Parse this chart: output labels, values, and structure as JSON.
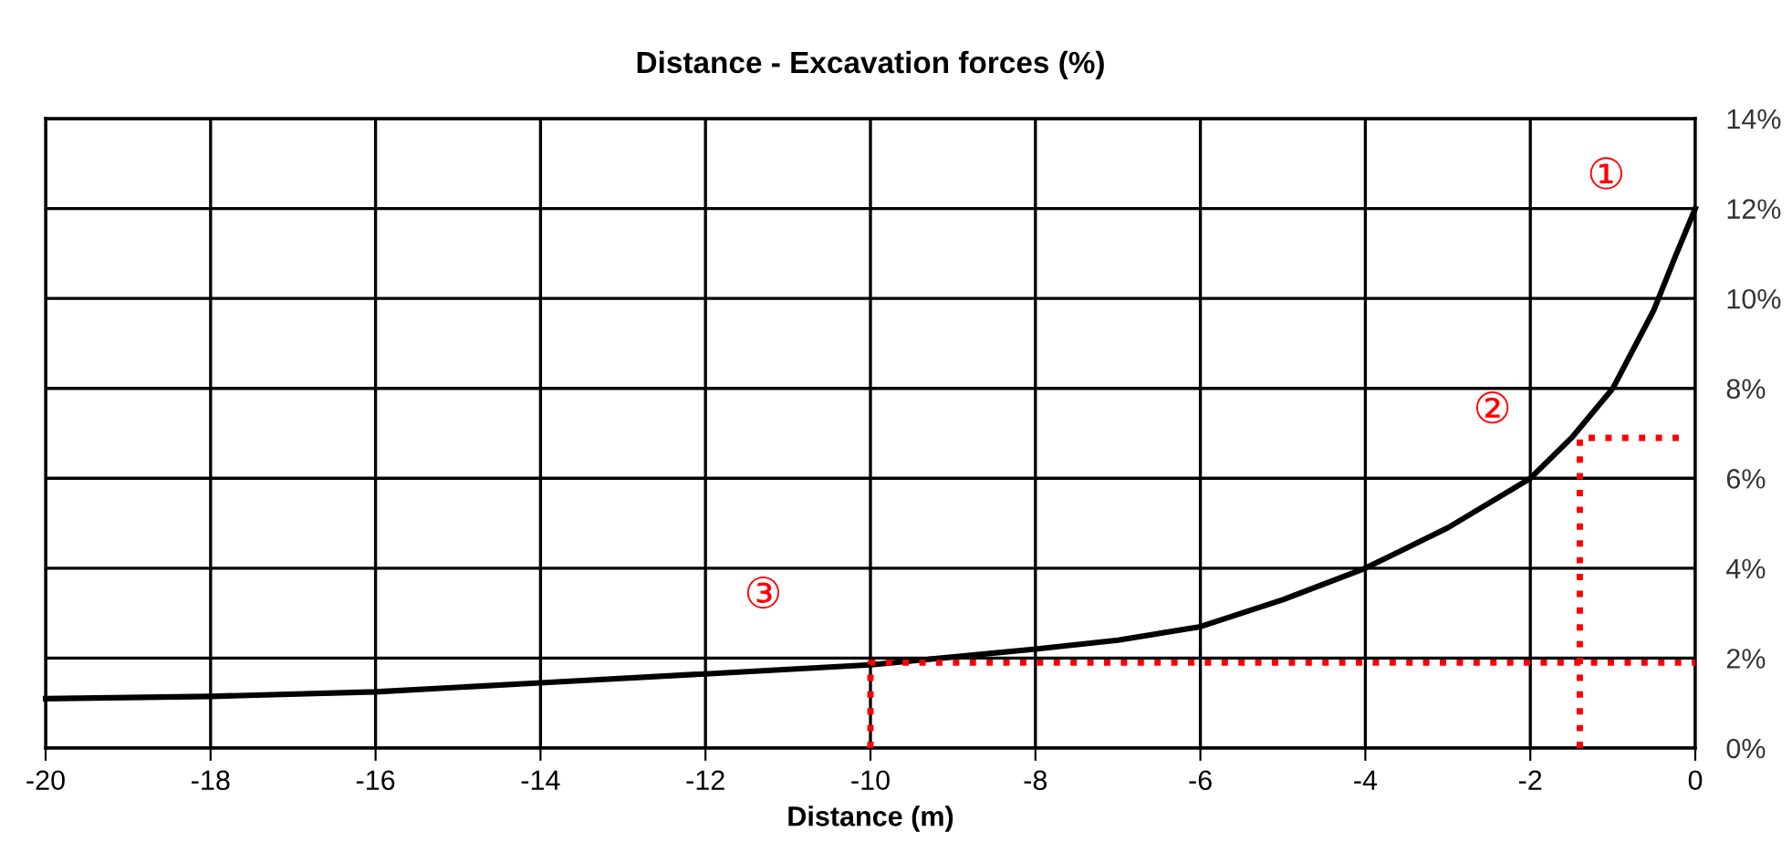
{
  "chart_data": {
    "type": "line",
    "title": "Distance - Excavation forces (%)",
    "xlabel": "Distance (m)",
    "series": [
      {
        "color": "#000000",
        "line_style": "solid",
        "x": [
          -20,
          -18,
          -16,
          -14,
          -12,
          -10,
          -8,
          -7,
          -6,
          -5,
          -4,
          -3,
          -2,
          -1.5,
          -1,
          -0.5,
          -0.25,
          0
        ],
        "values": [
          1.1,
          1.15,
          1.25,
          1.45,
          1.65,
          1.85,
          2.2,
          2.4,
          2.7,
          3.3,
          4.0,
          4.9,
          6.0,
          6.9,
          8.0,
          9.75,
          10.9,
          12
        ]
      },
      {
        "color": "#ff0000",
        "line_style": "dotted",
        "x": [
          -10,
          -10,
          0
        ],
        "values": [
          0,
          1.9,
          1.9
        ]
      },
      {
        "color": "#ff0000",
        "line_style": "dotted",
        "x": [
          -1.4,
          -1.4,
          -0.2
        ],
        "values": [
          0,
          6.9,
          6.9
        ]
      }
    ],
    "annotations": [
      "①",
      "②",
      "③"
    ],
    "xlim": [
      -20,
      0
    ],
    "xticks": [
      -20,
      -18,
      -16,
      -14,
      -12,
      -10,
      -8,
      -6,
      -4,
      -2,
      0
    ],
    "ylim": [
      0,
      14
    ],
    "yticks": [
      {
        "value": 0,
        "label": "0%"
      },
      {
        "value": 2,
        "label": "2%"
      },
      {
        "value": 4,
        "label": "4%"
      },
      {
        "value": 6,
        "label": "6%"
      },
      {
        "value": 8,
        "label": "8%"
      },
      {
        "value": 10,
        "label": "10%"
      },
      {
        "value": 12,
        "label": "12%"
      },
      {
        "value": 14,
        "label": "14%"
      }
    ],
    "grid": true,
    "marker": "none",
    "legend": false
  }
}
